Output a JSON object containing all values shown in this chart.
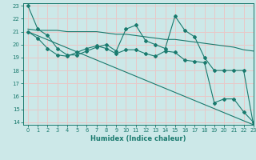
{
  "bg_color": "#cce8e8",
  "grid_color": "#e8c8c8",
  "line_color": "#1a7a6e",
  "xlabel": "Humidex (Indice chaleur)",
  "xlim": [
    -0.5,
    23
  ],
  "ylim": [
    13.8,
    23.2
  ],
  "yticks": [
    14,
    15,
    16,
    17,
    18,
    19,
    20,
    21,
    22,
    23
  ],
  "xticks": [
    0,
    1,
    2,
    3,
    4,
    5,
    6,
    7,
    8,
    9,
    10,
    11,
    12,
    13,
    14,
    15,
    16,
    17,
    18,
    19,
    20,
    21,
    22,
    23
  ],
  "series1_x": [
    0,
    1,
    2,
    3,
    4,
    5,
    6,
    7,
    8,
    9,
    10,
    11,
    12,
    13,
    14,
    15,
    16,
    17,
    18,
    19,
    20,
    21,
    22,
    23
  ],
  "series1_y": [
    23.0,
    21.2,
    20.7,
    19.7,
    19.2,
    19.2,
    19.5,
    19.8,
    20.0,
    19.5,
    21.2,
    21.5,
    20.3,
    20.0,
    19.7,
    22.2,
    21.1,
    20.6,
    19.0,
    18.0,
    18.0,
    18.0,
    18.0,
    13.8
  ],
  "series2_x": [
    0,
    1,
    2,
    3,
    4,
    5,
    6,
    7,
    8,
    9,
    10,
    11,
    12,
    13,
    14,
    15,
    16,
    17,
    18,
    19,
    20,
    21,
    22,
    23
  ],
  "series2_y": [
    21.2,
    21.1,
    21.1,
    21.1,
    21.0,
    21.0,
    21.0,
    21.0,
    20.9,
    20.8,
    20.8,
    20.7,
    20.6,
    20.5,
    20.4,
    20.4,
    20.3,
    20.2,
    20.1,
    20.0,
    19.9,
    19.8,
    19.6,
    19.5
  ],
  "series3_x": [
    0,
    1,
    2,
    3,
    4,
    5,
    6,
    7,
    8,
    9,
    10,
    11,
    12,
    13,
    14,
    15,
    16,
    17,
    18,
    19,
    20,
    21,
    22,
    23
  ],
  "series3_y": [
    21.0,
    20.5,
    19.7,
    19.2,
    19.1,
    19.4,
    19.7,
    19.9,
    19.7,
    19.3,
    19.6,
    19.6,
    19.3,
    19.1,
    19.5,
    19.4,
    18.8,
    18.7,
    18.6,
    15.5,
    15.8,
    15.8,
    14.8,
    14.0
  ],
  "series4_x": [
    0,
    23
  ],
  "series4_y": [
    21.0,
    13.8
  ]
}
